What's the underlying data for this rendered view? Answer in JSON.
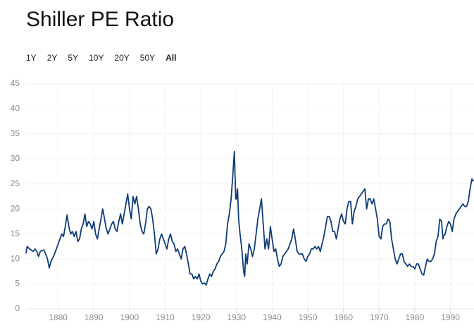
{
  "chart_data": {
    "type": "line",
    "title": "Shiller PE Ratio",
    "range_buttons": [
      "1Y",
      "2Y",
      "5Y",
      "10Y",
      "20Y",
      "50Y",
      "All"
    ],
    "selected_range": 6,
    "color": "#0f3c78",
    "grid": true,
    "xlim": [
      1871,
      1996.6
    ],
    "ylim": [
      0,
      45
    ],
    "xticks": [
      1880,
      1890,
      1900,
      1910,
      1920,
      1930,
      1940,
      1950,
      1960,
      1970,
      1980,
      1990
    ],
    "yticks": [
      0,
      5,
      10,
      15,
      20,
      25,
      30,
      35,
      40,
      45
    ],
    "x": [
      1871,
      1871.3,
      1872,
      1873,
      1873.5,
      1874,
      1874.5,
      1875,
      1876,
      1876.5,
      1877,
      1877.5,
      1878,
      1879,
      1880,
      1881,
      1881.5,
      1882,
      1882.5,
      1883,
      1883.5,
      1884,
      1884.5,
      1885,
      1885.5,
      1886,
      1886.5,
      1887,
      1887.5,
      1888,
      1888.5,
      1889,
      1889.5,
      1890,
      1890.5,
      1891,
      1891.5,
      1892,
      1892.5,
      1893,
      1893.5,
      1894,
      1894.5,
      1895,
      1895.5,
      1896,
      1896.5,
      1897,
      1897.5,
      1898,
      1898.5,
      1899,
      1899.5,
      1900,
      1900.5,
      1901,
      1901.5,
      1902,
      1902.5,
      1903,
      1903.5,
      1904,
      1904.5,
      1905,
      1905.5,
      1906,
      1906.5,
      1907,
      1907.5,
      1908,
      1908.5,
      1909,
      1909.5,
      1910,
      1910.5,
      1911,
      1911.5,
      1912,
      1912.5,
      1913,
      1913.5,
      1914,
      1914.5,
      1915,
      1915.5,
      1916,
      1916.5,
      1917,
      1917.5,
      1918,
      1918.5,
      1919,
      1919.5,
      1920,
      1920.5,
      1921,
      1921.5,
      1922,
      1922.5,
      1923,
      1923.5,
      1924,
      1924.5,
      1925,
      1925.5,
      1926,
      1926.5,
      1927,
      1927.5,
      1928,
      1928.5,
      1929,
      1929.4,
      1929.8,
      1930,
      1930.3,
      1930.6,
      1931,
      1931.5,
      1932,
      1932.3,
      1932.6,
      1933,
      1933.5,
      1934,
      1934.5,
      1935,
      1935.5,
      1936,
      1936.5,
      1937,
      1937.5,
      1938,
      1938.5,
      1939,
      1939.5,
      1940,
      1940.5,
      1941,
      1941.5,
      1942,
      1942.5,
      1943,
      1943.5,
      1944,
      1944.5,
      1945,
      1945.5,
      1946,
      1946.5,
      1947,
      1947.5,
      1948,
      1948.5,
      1949,
      1949.5,
      1950,
      1950.5,
      1951,
      1951.5,
      1952,
      1952.5,
      1953,
      1953.5,
      1954,
      1954.5,
      1955,
      1955.5,
      1956,
      1956.5,
      1957,
      1957.5,
      1958,
      1958.5,
      1959,
      1959.5,
      1960,
      1960.5,
      1961,
      1961.5,
      1962,
      1962.5,
      1963,
      1963.5,
      1964,
      1964.5,
      1965,
      1965.5,
      1966,
      1966.5,
      1967,
      1967.5,
      1968,
      1968.5,
      1969,
      1969.5,
      1970,
      1970.5,
      1971,
      1971.5,
      1972,
      1972.5,
      1973,
      1973.5,
      1974,
      1974.5,
      1975,
      1975.5,
      1976,
      1976.5,
      1977,
      1977.5,
      1978,
      1978.5,
      1979,
      1979.5,
      1980,
      1980.5,
      1981,
      1981.5,
      1982,
      1982.5,
      1983,
      1983.5,
      1984,
      1984.5,
      1985,
      1985.5,
      1986,
      1986.5,
      1987,
      1987.5,
      1987.9,
      1988,
      1988.5,
      1989,
      1989.5,
      1990,
      1990.5,
      1991,
      1991.5,
      1992,
      1992.5,
      1993,
      1993.5,
      1994,
      1994.5,
      1995,
      1995.5,
      1996,
      1996.5
    ],
    "values": [
      11.1,
      12.5,
      12,
      11.5,
      12,
      11.5,
      10.5,
      11.5,
      11.8,
      11,
      10,
      8.2,
      9.5,
      11,
      13,
      15,
      14.5,
      16.5,
      18.8,
      16.5,
      15,
      15.5,
      14.5,
      15.5,
      13.5,
      14,
      16,
      17,
      19,
      16.5,
      17.5,
      17,
      16,
      17.5,
      15,
      14,
      16,
      18,
      20,
      18,
      16,
      15,
      16,
      17,
      17.5,
      16,
      15.5,
      17.5,
      19,
      17,
      19,
      21,
      23,
      20,
      18,
      22.5,
      21,
      22.5,
      20,
      17,
      15.5,
      15,
      17,
      20,
      20.5,
      20,
      18,
      15,
      11,
      12,
      14,
      15,
      14,
      13,
      12,
      14,
      15,
      13.5,
      13,
      11.5,
      12,
      11,
      10,
      12,
      12.5,
      11,
      9,
      7,
      7,
      6,
      6.5,
      6,
      7,
      5.5,
      5,
      5.2,
      4.8,
      6,
      7,
      6.5,
      7.5,
      8,
      9,
      9.5,
      10.5,
      11,
      11.5,
      13,
      17,
      19,
      22,
      27,
      31.5,
      22,
      22,
      24,
      18,
      15,
      12,
      7.5,
      6.5,
      11,
      9,
      13,
      12,
      10.5,
      12,
      15,
      18,
      20,
      22,
      17,
      12,
      14,
      12,
      16.5,
      14,
      11.5,
      12,
      10,
      8.5,
      9,
      10.5,
      11,
      11.5,
      12,
      13,
      14,
      16,
      14,
      11.5,
      11,
      11,
      11,
      10,
      9.5,
      10.5,
      11,
      12,
      12,
      12.5,
      12,
      12.5,
      11.5,
      13,
      14.5,
      16.5,
      18.5,
      18.5,
      17.5,
      15.5,
      15.5,
      14,
      16,
      18,
      19,
      17.5,
      17,
      20,
      21.5,
      21.5,
      17,
      19.5,
      20.5,
      22,
      22.5,
      23,
      23.5,
      24,
      20,
      22,
      22,
      21,
      22,
      20,
      18,
      14.5,
      14,
      16.5,
      17,
      17,
      18,
      17.5,
      14,
      12,
      10,
      9,
      10,
      11,
      11,
      9.5,
      9,
      8.5,
      9,
      8.5,
      8.5,
      8,
      9,
      9,
      8,
      7,
      6.8,
      8.5,
      10,
      9.5,
      9.5,
      10,
      11,
      13.5,
      14.5,
      18,
      17.5,
      14,
      14.5,
      15,
      16.5,
      17.5,
      17,
      15.5,
      18,
      19,
      19.5,
      20,
      20.5,
      21,
      20.5,
      20.5,
      21.5,
      24,
      26,
      25.5
    ]
  }
}
